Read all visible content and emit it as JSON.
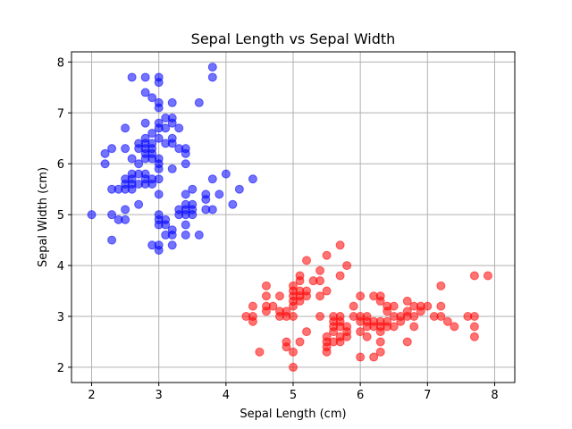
{
  "chart_data": {
    "type": "scatter",
    "title": "Sepal Length vs Sepal Width",
    "xlabel": "Sepal Length (cm)",
    "ylabel": "Sepal Width (cm)",
    "xlim": [
      1.7,
      8.3
    ],
    "ylim": [
      1.7,
      8.2
    ],
    "xticks": [
      2,
      3,
      4,
      5,
      6,
      7,
      8
    ],
    "yticks": [
      2,
      3,
      4,
      5,
      6,
      7,
      8
    ],
    "grid": true,
    "legend": false,
    "marker_alpha": 0.55,
    "series": [
      {
        "color": "#0000ff",
        "points": [
          [
            2.0,
            5.0
          ],
          [
            2.2,
            6.2
          ],
          [
            2.2,
            6.0
          ],
          [
            2.3,
            6.3
          ],
          [
            2.3,
            5.5
          ],
          [
            2.3,
            5.0
          ],
          [
            2.3,
            4.5
          ],
          [
            2.4,
            5.5
          ],
          [
            2.4,
            4.9
          ],
          [
            2.5,
            6.7
          ],
          [
            2.5,
            6.3
          ],
          [
            2.5,
            5.7
          ],
          [
            2.5,
            5.6
          ],
          [
            2.5,
            5.5
          ],
          [
            2.5,
            5.1
          ],
          [
            2.5,
            4.9
          ],
          [
            2.6,
            7.7
          ],
          [
            2.6,
            6.1
          ],
          [
            2.6,
            5.8
          ],
          [
            2.6,
            5.7
          ],
          [
            2.6,
            5.6
          ],
          [
            2.6,
            5.5
          ],
          [
            2.7,
            6.4
          ],
          [
            2.7,
            6.3
          ],
          [
            2.7,
            6.0
          ],
          [
            2.7,
            5.8
          ],
          [
            2.7,
            5.6
          ],
          [
            2.7,
            5.2
          ],
          [
            2.8,
            7.7
          ],
          [
            2.8,
            7.4
          ],
          [
            2.8,
            6.8
          ],
          [
            2.8,
            6.5
          ],
          [
            2.8,
            6.4
          ],
          [
            2.8,
            6.3
          ],
          [
            2.8,
            6.2
          ],
          [
            2.8,
            6.1
          ],
          [
            2.8,
            5.8
          ],
          [
            2.8,
            5.7
          ],
          [
            2.8,
            5.6
          ],
          [
            2.9,
            7.3
          ],
          [
            2.9,
            6.6
          ],
          [
            2.9,
            6.4
          ],
          [
            2.9,
            6.3
          ],
          [
            2.9,
            6.2
          ],
          [
            2.9,
            6.1
          ],
          [
            2.9,
            5.7
          ],
          [
            2.9,
            5.6
          ],
          [
            2.9,
            4.4
          ],
          [
            3.0,
            7.7
          ],
          [
            3.0,
            7.6
          ],
          [
            3.0,
            7.2
          ],
          [
            3.0,
            7.1
          ],
          [
            3.0,
            6.8
          ],
          [
            3.0,
            6.7
          ],
          [
            3.0,
            6.5
          ],
          [
            3.0,
            6.1
          ],
          [
            3.0,
            6.0
          ],
          [
            3.0,
            5.9
          ],
          [
            3.0,
            5.7
          ],
          [
            3.0,
            5.4
          ],
          [
            3.0,
            5.0
          ],
          [
            3.0,
            4.9
          ],
          [
            3.0,
            4.8
          ],
          [
            3.0,
            4.4
          ],
          [
            3.0,
            4.3
          ],
          [
            3.1,
            6.9
          ],
          [
            3.1,
            6.7
          ],
          [
            3.1,
            6.4
          ],
          [
            3.1,
            4.9
          ],
          [
            3.1,
            4.8
          ],
          [
            3.1,
            4.6
          ],
          [
            3.2,
            7.2
          ],
          [
            3.2,
            6.9
          ],
          [
            3.2,
            6.8
          ],
          [
            3.2,
            6.5
          ],
          [
            3.2,
            6.4
          ],
          [
            3.2,
            5.9
          ],
          [
            3.2,
            4.7
          ],
          [
            3.2,
            4.6
          ],
          [
            3.2,
            4.4
          ],
          [
            3.3,
            6.7
          ],
          [
            3.3,
            6.3
          ],
          [
            3.3,
            5.1
          ],
          [
            3.3,
            5.0
          ],
          [
            3.4,
            6.3
          ],
          [
            3.4,
            6.2
          ],
          [
            3.4,
            6.0
          ],
          [
            3.4,
            5.4
          ],
          [
            3.4,
            5.2
          ],
          [
            3.4,
            5.1
          ],
          [
            3.4,
            5.0
          ],
          [
            3.4,
            4.8
          ],
          [
            3.4,
            4.6
          ],
          [
            3.5,
            5.5
          ],
          [
            3.5,
            5.2
          ],
          [
            3.5,
            5.1
          ],
          [
            3.5,
            5.0
          ],
          [
            3.6,
            7.2
          ],
          [
            3.6,
            4.6
          ],
          [
            3.7,
            5.4
          ],
          [
            3.7,
            5.3
          ],
          [
            3.7,
            5.1
          ],
          [
            3.8,
            7.9
          ],
          [
            3.8,
            7.7
          ],
          [
            3.8,
            5.7
          ],
          [
            3.8,
            5.1
          ],
          [
            3.9,
            5.4
          ],
          [
            4.0,
            5.8
          ],
          [
            4.1,
            5.2
          ],
          [
            4.2,
            5.5
          ],
          [
            4.4,
            5.7
          ]
        ]
      },
      {
        "color": "#ff0000",
        "points": [
          [
            4.3,
            3.0
          ],
          [
            4.4,
            3.2
          ],
          [
            4.4,
            3.0
          ],
          [
            4.4,
            2.9
          ],
          [
            4.5,
            2.3
          ],
          [
            4.6,
            3.6
          ],
          [
            4.6,
            3.4
          ],
          [
            4.6,
            3.2
          ],
          [
            4.6,
            3.1
          ],
          [
            4.7,
            3.2
          ],
          [
            4.8,
            3.4
          ],
          [
            4.8,
            3.1
          ],
          [
            4.8,
            3.0
          ],
          [
            4.9,
            3.1
          ],
          [
            4.9,
            3.0
          ],
          [
            4.9,
            2.5
          ],
          [
            4.9,
            2.4
          ],
          [
            5.0,
            3.6
          ],
          [
            5.0,
            3.5
          ],
          [
            5.0,
            3.4
          ],
          [
            5.0,
            3.3
          ],
          [
            5.0,
            3.2
          ],
          [
            5.0,
            3.0
          ],
          [
            5.0,
            2.3
          ],
          [
            5.0,
            2.0
          ],
          [
            5.1,
            3.8
          ],
          [
            5.1,
            3.7
          ],
          [
            5.1,
            3.5
          ],
          [
            5.1,
            3.4
          ],
          [
            5.1,
            3.3
          ],
          [
            5.1,
            2.5
          ],
          [
            5.2,
            4.1
          ],
          [
            5.2,
            3.5
          ],
          [
            5.2,
            3.4
          ],
          [
            5.2,
            2.7
          ],
          [
            5.3,
            3.7
          ],
          [
            5.4,
            3.9
          ],
          [
            5.4,
            3.7
          ],
          [
            5.4,
            3.4
          ],
          [
            5.4,
            3.0
          ],
          [
            5.5,
            4.2
          ],
          [
            5.5,
            3.5
          ],
          [
            5.5,
            2.6
          ],
          [
            5.5,
            2.5
          ],
          [
            5.5,
            2.4
          ],
          [
            5.5,
            2.3
          ],
          [
            5.6,
            3.0
          ],
          [
            5.6,
            2.9
          ],
          [
            5.6,
            2.8
          ],
          [
            5.6,
            2.7
          ],
          [
            5.6,
            2.5
          ],
          [
            5.7,
            4.4
          ],
          [
            5.7,
            3.8
          ],
          [
            5.7,
            3.0
          ],
          [
            5.7,
            2.9
          ],
          [
            5.7,
            2.8
          ],
          [
            5.7,
            2.6
          ],
          [
            5.7,
            2.5
          ],
          [
            5.8,
            4.0
          ],
          [
            5.8,
            2.8
          ],
          [
            5.8,
            2.7
          ],
          [
            5.8,
            2.6
          ],
          [
            5.9,
            3.2
          ],
          [
            5.9,
            3.0
          ],
          [
            6.0,
            3.4
          ],
          [
            6.0,
            3.0
          ],
          [
            6.0,
            2.9
          ],
          [
            6.0,
            2.7
          ],
          [
            6.0,
            2.2
          ],
          [
            6.1,
            3.0
          ],
          [
            6.1,
            2.9
          ],
          [
            6.1,
            2.8
          ],
          [
            6.1,
            2.6
          ],
          [
            6.2,
            3.4
          ],
          [
            6.2,
            2.9
          ],
          [
            6.2,
            2.8
          ],
          [
            6.2,
            2.2
          ],
          [
            6.3,
            3.4
          ],
          [
            6.3,
            3.3
          ],
          [
            6.3,
            2.9
          ],
          [
            6.3,
            2.8
          ],
          [
            6.3,
            2.7
          ],
          [
            6.3,
            2.5
          ],
          [
            6.3,
            2.3
          ],
          [
            6.4,
            3.2
          ],
          [
            6.4,
            3.1
          ],
          [
            6.4,
            2.9
          ],
          [
            6.4,
            2.8
          ],
          [
            6.5,
            3.2
          ],
          [
            6.5,
            3.0
          ],
          [
            6.5,
            2.8
          ],
          [
            6.6,
            3.0
          ],
          [
            6.6,
            2.9
          ],
          [
            6.7,
            3.3
          ],
          [
            6.7,
            3.1
          ],
          [
            6.7,
            3.0
          ],
          [
            6.7,
            2.5
          ],
          [
            6.8,
            3.2
          ],
          [
            6.8,
            3.0
          ],
          [
            6.8,
            2.8
          ],
          [
            6.9,
            3.2
          ],
          [
            6.9,
            3.1
          ],
          [
            7.0,
            3.2
          ],
          [
            7.1,
            3.0
          ],
          [
            7.2,
            3.6
          ],
          [
            7.2,
            3.2
          ],
          [
            7.2,
            3.0
          ],
          [
            7.3,
            2.9
          ],
          [
            7.4,
            2.8
          ],
          [
            7.6,
            3.0
          ],
          [
            7.7,
            3.8
          ],
          [
            7.7,
            3.0
          ],
          [
            7.7,
            2.8
          ],
          [
            7.7,
            2.6
          ],
          [
            7.9,
            3.8
          ]
        ]
      }
    ]
  }
}
